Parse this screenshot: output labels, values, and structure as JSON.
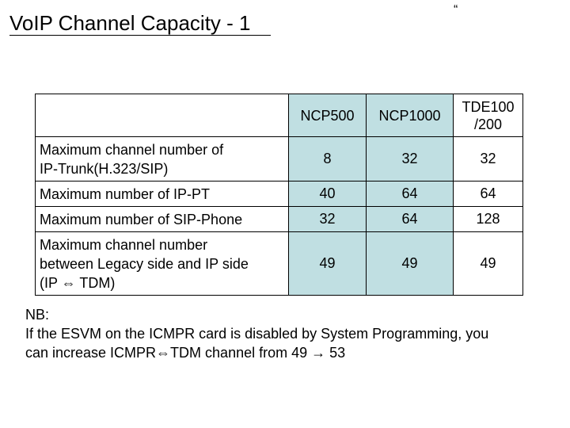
{
  "slide": {
    "title": "VoIP Channel Capacity - 1",
    "quote_mark": "“"
  },
  "table": {
    "columns": [
      "NCP500",
      "NCP1000",
      "TDE100\n/200"
    ],
    "rows": [
      {
        "label": "Maximum channel number of\nIP-Trunk(H.323/SIP)",
        "values": [
          "8",
          "32",
          "32"
        ]
      },
      {
        "label": "Maximum number of IP-PT",
        "values": [
          "40",
          "64",
          "64"
        ]
      },
      {
        "label": "Maximum number of SIP-Phone",
        "values": [
          "32",
          "64",
          "128"
        ]
      },
      {
        "label": "Maximum channel number\nbetween Legacy side and IP side\n(IP ⇔ TDM)",
        "values": [
          "49",
          "49",
          "49"
        ]
      }
    ]
  },
  "note": {
    "heading": "NB:",
    "line1": "If the ESVM on the ICMPR card is disabled by System Programming, you",
    "line2": "can increase ICMPR⇔TDM channel from 49 → 53"
  }
}
